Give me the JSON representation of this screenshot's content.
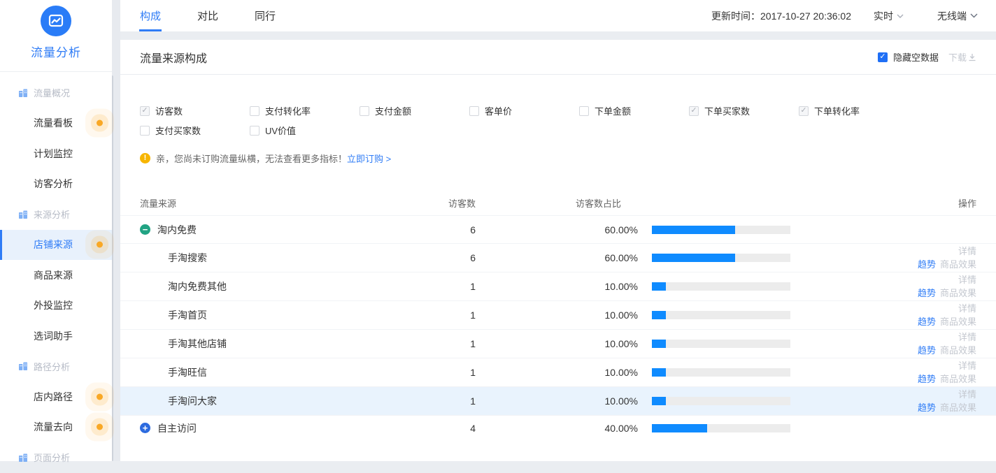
{
  "app": {
    "title": "流量分析"
  },
  "colors": {
    "accent": "#2f7cf6",
    "bar_fill": "#0f8bff",
    "bar_track": "#ececec",
    "collapse_green": "#21a383",
    "expand_blue": "#2d6bdf",
    "badge_orange": "#f9a825",
    "notice_orange": "#f7b500"
  },
  "sidebar": {
    "groups": [
      {
        "id": "traffic-overview",
        "label": "流量概况",
        "items": [
          {
            "id": "traffic-board",
            "label": "流量看板",
            "badge": true
          },
          {
            "id": "plan-monitor",
            "label": "计划监控",
            "badge": false
          },
          {
            "id": "visitor-analysis",
            "label": "访客分析",
            "badge": false
          }
        ]
      },
      {
        "id": "source-analysis",
        "label": "来源分析",
        "items": [
          {
            "id": "shop-source",
            "label": "店铺来源",
            "badge": true,
            "active": true
          },
          {
            "id": "product-source",
            "label": "商品来源",
            "badge": false
          },
          {
            "id": "external-monitor",
            "label": "外投监控",
            "badge": false
          },
          {
            "id": "word-helper",
            "label": "选词助手",
            "badge": false
          }
        ]
      },
      {
        "id": "path-analysis",
        "label": "路径分析",
        "items": [
          {
            "id": "in-shop-path",
            "label": "店内路径",
            "badge": true
          },
          {
            "id": "traffic-destination",
            "label": "流量去向",
            "badge": true
          }
        ]
      },
      {
        "id": "page-analysis",
        "label": "页面分析",
        "items": []
      }
    ]
  },
  "header": {
    "tabs": [
      {
        "id": "composition",
        "label": "构成",
        "active": true
      },
      {
        "id": "compare",
        "label": "对比",
        "active": false
      },
      {
        "id": "peers",
        "label": "同行",
        "active": false
      }
    ],
    "update_time": "更新时间：2017-10-27 20:36:02",
    "realtime_label": "实时",
    "terminal_label": "无线端"
  },
  "panel": {
    "title": "流量来源构成",
    "hide_empty_label": "隐藏空数据",
    "hide_empty_checked": true,
    "download_label": "下载"
  },
  "metrics": {
    "options": [
      {
        "id": "visitors",
        "label": "访客数",
        "checked": true
      },
      {
        "id": "pay-conversion",
        "label": "支付转化率",
        "checked": false
      },
      {
        "id": "pay-amount",
        "label": "支付金额",
        "checked": false
      },
      {
        "id": "avg-order-value",
        "label": "客单价",
        "checked": false
      },
      {
        "id": "order-amount",
        "label": "下单金额",
        "checked": false
      },
      {
        "id": "order-buyers",
        "label": "下单买家数",
        "checked": true
      },
      {
        "id": "order-conversion",
        "label": "下单转化率",
        "checked": true
      },
      {
        "id": "pay-buyers",
        "label": "支付买家数",
        "checked": false
      },
      {
        "id": "uv-value",
        "label": "UV价值",
        "checked": false
      }
    ]
  },
  "notice": {
    "text": "亲，您尚未订购流量纵横，无法查看更多指标！",
    "link": "立即订购 >"
  },
  "table": {
    "columns": [
      "流量来源",
      "访客数",
      "访客数占比",
      "操作"
    ],
    "actions": {
      "detail": "详情",
      "trend": "趋势",
      "effect": "商品效果"
    },
    "rows": [
      {
        "id": "taonei-free",
        "name": "淘内免费",
        "indent": 0,
        "toggle": "collapse",
        "visitors": "6",
        "ratio": "60.00%",
        "ratio_pct": 60,
        "actions": false,
        "highlight": false
      },
      {
        "id": "shoutao-search",
        "name": "手淘搜索",
        "indent": 1,
        "toggle": null,
        "visitors": "6",
        "ratio": "60.00%",
        "ratio_pct": 60,
        "actions": true,
        "highlight": false
      },
      {
        "id": "taonei-free-other",
        "name": "淘内免费其他",
        "indent": 1,
        "toggle": null,
        "visitors": "1",
        "ratio": "10.00%",
        "ratio_pct": 10,
        "actions": true,
        "highlight": false
      },
      {
        "id": "shoutao-home",
        "name": "手淘首页",
        "indent": 1,
        "toggle": null,
        "visitors": "1",
        "ratio": "10.00%",
        "ratio_pct": 10,
        "actions": true,
        "highlight": false
      },
      {
        "id": "shoutao-other-shop",
        "name": "手淘其他店铺",
        "indent": 1,
        "toggle": null,
        "visitors": "1",
        "ratio": "10.00%",
        "ratio_pct": 10,
        "actions": true,
        "highlight": false
      },
      {
        "id": "shoutao-wangxin",
        "name": "手淘旺信",
        "indent": 1,
        "toggle": null,
        "visitors": "1",
        "ratio": "10.00%",
        "ratio_pct": 10,
        "actions": true,
        "highlight": false
      },
      {
        "id": "shoutao-wenda",
        "name": "手淘问大家",
        "indent": 1,
        "toggle": null,
        "visitors": "1",
        "ratio": "10.00%",
        "ratio_pct": 10,
        "actions": true,
        "highlight": true
      },
      {
        "id": "self-visit",
        "name": "自主访问",
        "indent": 0,
        "toggle": "expand",
        "visitors": "4",
        "ratio": "40.00%",
        "ratio_pct": 40,
        "actions": false,
        "highlight": false
      }
    ]
  }
}
